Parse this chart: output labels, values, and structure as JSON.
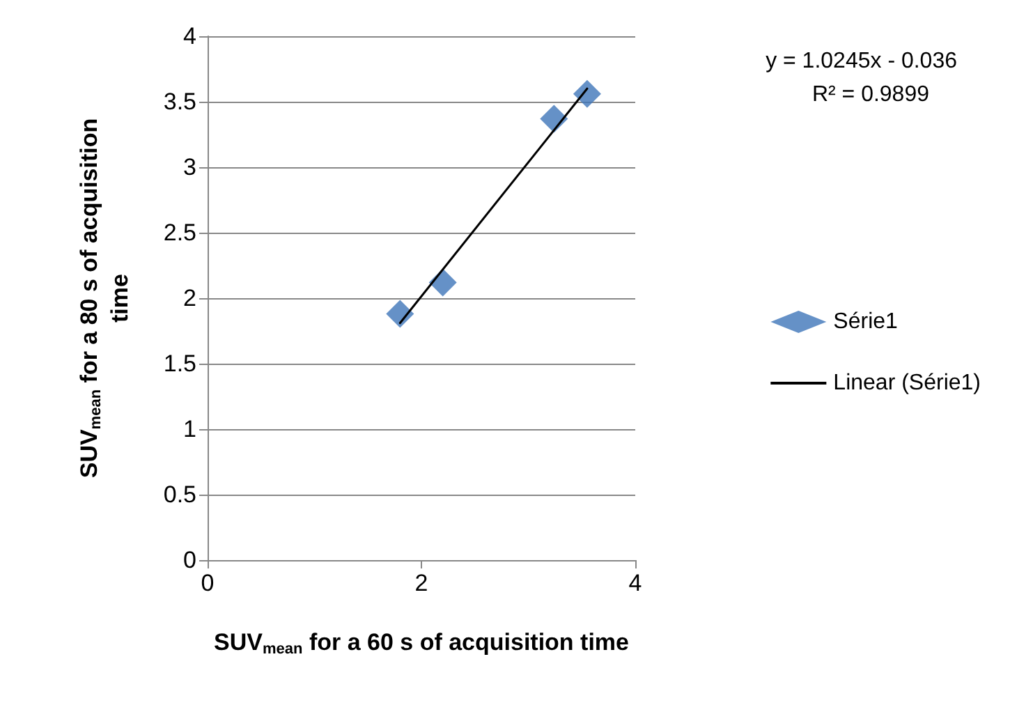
{
  "chart_data": {
    "type": "scatter",
    "xlabel": "SUV$_{mean}$ for a 60 s of acquisition time",
    "ylabel": "SUV$_{mean}$ for a 80 s of acquisition time",
    "series": [
      {
        "name": "Série1",
        "color": "#3e75b9",
        "marker": "diamond",
        "x": [
          1.8,
          2.2,
          3.24,
          3.55
        ],
        "values": [
          1.88,
          2.12,
          3.37,
          3.56
        ]
      },
      {
        "name": "Linear (Série1)",
        "type": "line",
        "color": "#000000",
        "marker": "none",
        "x": [
          1.8,
          3.55
        ],
        "values": [
          1.81,
          3.6
        ]
      }
    ],
    "annotations": [
      "y = 1.0245x - 0.036",
      "R² = 0.9899"
    ],
    "xlim": [
      0,
      4
    ],
    "xticks": [
      0,
      2,
      4
    ],
    "ylim": [
      0,
      4
    ],
    "yticks": [
      0,
      0.5,
      1,
      1.5,
      2,
      2.5,
      3,
      3.5,
      4
    ],
    "grid": "y",
    "legend": "right",
    "line_style": "solid"
  }
}
